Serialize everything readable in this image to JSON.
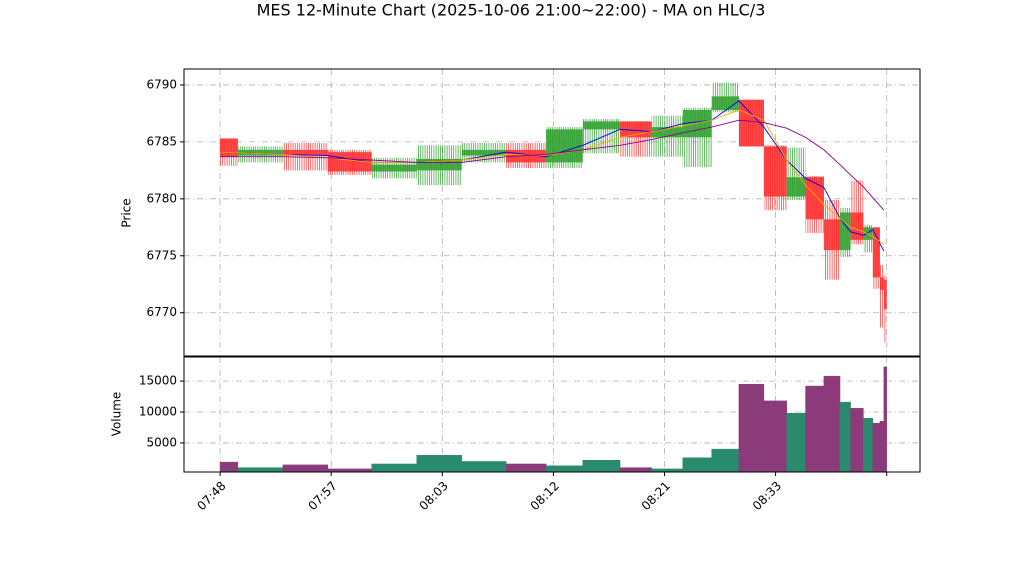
{
  "chart_data": [
    {
      "type": "candlestick",
      "title": "MES 12-Minute Chart (2025-10-06 21:00~22:00) - MA on HLC/3",
      "ylabel": "Price",
      "xlim": [
        -6.5,
        126
      ],
      "ylim": [
        6766.2,
        6791.4
      ],
      "yticks": [
        6770,
        6775,
        6780,
        6785,
        6790
      ],
      "grid": true,
      "up_color": "#2ca02c",
      "down_color": "#ff2a2a",
      "x0": [
        0,
        3.2,
        11.3,
        19.4,
        27.3,
        35.4,
        43.5,
        51.5,
        58.7,
        65.3,
        72,
        77.7,
        83.3,
        88.5,
        93.4,
        97.9,
        102,
        105.4,
        108.7,
        111.6,
        113.5,
        115.8,
        117.5,
        118.8,
        119.5
      ],
      "x1": [
        3.2,
        11.3,
        19.4,
        27.3,
        35.4,
        43.5,
        51.5,
        58.7,
        65.3,
        72,
        77.7,
        83.3,
        88.5,
        93.4,
        97.9,
        102,
        105.4,
        108.7,
        111.6,
        113.5,
        115.8,
        117.5,
        118.8,
        119.5,
        120
      ],
      "open": [
        6785.3,
        6783.8,
        6784.3,
        6784.1,
        6782.4,
        6782.5,
        6783.8,
        6784.3,
        6783.2,
        6786.1,
        6786.8,
        6785.4,
        6785.4,
        6787.8,
        6788.7,
        6784.6,
        6780.2,
        6781.9,
        6778.2,
        6775.5,
        6778.8,
        6776.4,
        6777.5,
        6773.1,
        6772.9
      ],
      "high": [
        6785.3,
        6784.6,
        6784.9,
        6784.3,
        6783.6,
        6784.7,
        6784.9,
        6784.9,
        6786.3,
        6787.0,
        6786.8,
        6787.3,
        6788.0,
        6790.2,
        6788.7,
        6784.7,
        6784.5,
        6782.0,
        6779.9,
        6779.2,
        6781.6,
        6777.7,
        6777.5,
        6774.2,
        6773.3
      ],
      "low": [
        6782.9,
        6783.2,
        6782.5,
        6782.1,
        6781.8,
        6781.2,
        6783.2,
        6782.7,
        6782.7,
        6784.0,
        6783.7,
        6783.7,
        6782.8,
        6787.6,
        6784.6,
        6779.0,
        6779.9,
        6777.0,
        6772.9,
        6774.9,
        6776.0,
        6775.3,
        6772.1,
        6768.7,
        6767.4
      ],
      "close": [
        6783.7,
        6784.3,
        6783.8,
        6782.4,
        6783.0,
        6783.5,
        6784.3,
        6783.2,
        6786.1,
        6786.8,
        6785.4,
        6786.3,
        6787.8,
        6789.0,
        6784.6,
        6780.2,
        6781.9,
        6778.2,
        6775.5,
        6778.8,
        6776.4,
        6777.5,
        6773.1,
        6772.0,
        6770.3
      ],
      "ma_x": [
        0,
        11.3,
        19.4,
        27.3,
        35.4,
        43.5,
        51.5,
        58.7,
        65.3,
        72,
        77.7,
        83.3,
        88.5,
        93.4,
        97.9,
        102,
        105.4,
        108.7,
        111.6,
        113.5,
        115.9,
        117.5,
        119.5
      ],
      "ma": [
        {
          "color": "#0000ee",
          "values": [
            6784.1,
            6783.9,
            6783.8,
            6783.2,
            6783.2,
            6783.4,
            6784.1,
            6783.7,
            6784.7,
            6786.1,
            6785.9,
            6786.6,
            6786.9,
            6788.6,
            6786.3,
            6783.4,
            6781.8,
            6781.0,
            6778.3,
            6777.1,
            6776.8,
            6777.3,
            6775.4
          ]
        },
        {
          "color": "#ffa500",
          "values": [
            6784.1,
            6783.9,
            6783.6,
            6783.2,
            6783.2,
            6783.4,
            6783.9,
            6783.8,
            6784.3,
            6785.4,
            6785.9,
            6786.4,
            6786.9,
            6787.8,
            6786.9,
            6783.4,
            6781.2,
            6779.5,
            6778.3,
            6777.5,
            6777.1,
            6776.7,
            6776.0
          ]
        },
        {
          "color": "#8b008b",
          "values": [
            6783.7,
            6783.7,
            6783.6,
            6783.4,
            6783.2,
            6783.2,
            6783.7,
            6783.9,
            6784.3,
            6784.7,
            6785.2,
            6785.8,
            6786.3,
            6786.9,
            6786.7,
            6786.2,
            6785.4,
            6784.3,
            6783.0,
            6782.1,
            6781.0,
            6780.1,
            6779.0
          ]
        }
      ]
    },
    {
      "type": "bar",
      "ylabel": "Volume",
      "xlim": [
        -6.5,
        126
      ],
      "ylim": [
        300,
        18900
      ],
      "yticks": [
        5000,
        10000,
        15000
      ],
      "grid": true,
      "xticks": [
        {
          "value": 0,
          "label": "07:48"
        },
        {
          "value": 20,
          "label": "07:57"
        },
        {
          "value": 40,
          "label": "08:03"
        },
        {
          "value": 60,
          "label": "08:12"
        },
        {
          "value": 80,
          "label": "08:21"
        },
        {
          "value": 100,
          "label": "08:33"
        },
        {
          "value": 120,
          "label": null
        }
      ],
      "up_color": "#2a8a6e",
      "down_color": "#8b3a7a",
      "x0": [
        0,
        3.2,
        11.3,
        19.4,
        27.3,
        35.4,
        43.5,
        51.5,
        58.7,
        65.3,
        72,
        77.7,
        83.3,
        88.5,
        93.4,
        97.9,
        102,
        105.4,
        108.7,
        111.6,
        113.5,
        115.8,
        117.5,
        118.8,
        119.5
      ],
      "x1": [
        3.2,
        11.3,
        19.4,
        27.3,
        35.4,
        43.5,
        51.5,
        58.7,
        65.3,
        72,
        77.7,
        83.3,
        88.5,
        93.4,
        97.9,
        102,
        105.4,
        108.7,
        111.6,
        113.5,
        115.8,
        117.5,
        118.8,
        119.5,
        120
      ],
      "values": [
        1900,
        1000,
        1450,
        800,
        1600,
        3000,
        2000,
        1600,
        1300,
        2200,
        1000,
        800,
        2600,
        4000,
        14500,
        11800,
        9800,
        14200,
        15800,
        11600,
        10600,
        9000,
        8200,
        8500,
        17300
      ]
    }
  ]
}
